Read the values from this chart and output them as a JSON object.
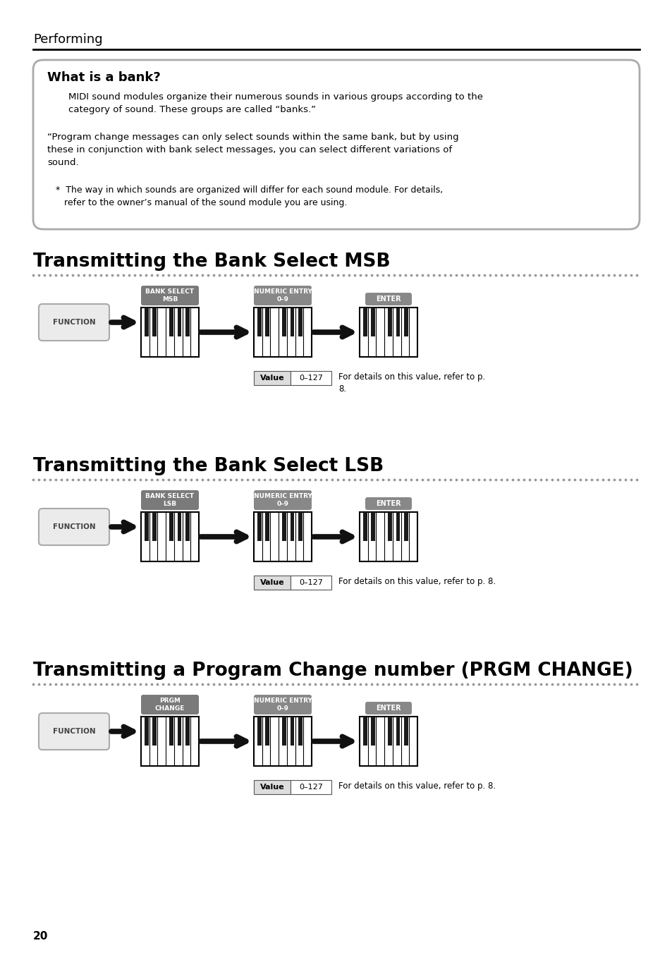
{
  "page_bg": "#ffffff",
  "page_number": "20",
  "section_title": "Performing",
  "bank_box_title": "What is a bank?",
  "bank_box_text1": "MIDI sound modules organize their numerous sounds in various groups according to the\ncategory of sound. These groups are called “banks.”",
  "bank_box_text2": "“Program change messages can only select sounds within the same bank, but by using\nthese in conjunction with bank select messages, you can select different variations of\nsound.",
  "bank_box_note": "   *  The way in which sounds are organized will differ for each sound module. For details,\n      refer to the owner’s manual of the sound module you are using.",
  "msb_title": "Transmitting the Bank Select MSB",
  "lsb_title": "Transmitting the Bank Select LSB",
  "prgm_title": "Transmitting a Program Change number (PRGM CHANGE)",
  "function_label": "FUNCTION",
  "bank_select_msb_label": "BANK SELECT\nMSB",
  "bank_select_lsb_label": "BANK SELECT\nLSB",
  "prgm_change_label": "PRGM\nCHANGE",
  "numeric_entry_label": "NUMERIC ENTRY\n0–9",
  "enter_label": "ENTER",
  "value_label": "Value",
  "value_range": "0–127",
  "msb_note": "For details on this value, refer to p.\n8.",
  "lsb_note": "For details on this value, refer to p. 8.",
  "prgm_note": "For details on this value, refer to p. 8."
}
